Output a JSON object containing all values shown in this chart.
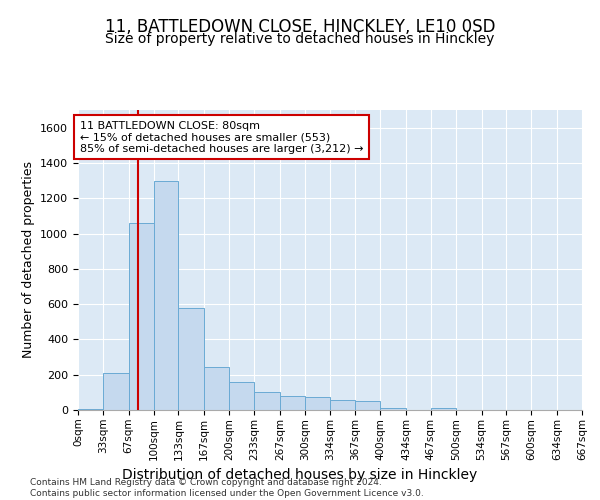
{
  "title": "11, BATTLEDOWN CLOSE, HINCKLEY, LE10 0SD",
  "subtitle": "Size of property relative to detached houses in Hinckley",
  "xlabel": "Distribution of detached houses by size in Hinckley",
  "ylabel": "Number of detached properties",
  "footer_line1": "Contains HM Land Registry data © Crown copyright and database right 2024.",
  "footer_line2": "Contains public sector information licensed under the Open Government Licence v3.0.",
  "bin_edges": [
    0,
    33,
    67,
    100,
    133,
    167,
    200,
    233,
    267,
    300,
    334,
    367,
    400,
    434,
    467,
    500,
    534,
    567,
    600,
    634,
    667
  ],
  "bar_heights": [
    5,
    210,
    1060,
    1300,
    580,
    245,
    160,
    100,
    80,
    75,
    55,
    50,
    10,
    0,
    10,
    0,
    0,
    0,
    0,
    0
  ],
  "bar_color": "#c5d9ee",
  "bar_edge_color": "#6aaad4",
  "property_size": 80,
  "red_line_color": "#cc0000",
  "annotation_line1": "11 BATTLEDOWN CLOSE: 80sqm",
  "annotation_line2": "← 15% of detached houses are smaller (553)",
  "annotation_line3": "85% of semi-detached houses are larger (3,212) →",
  "annotation_box_color": "#cc0000",
  "ylim": [
    0,
    1700
  ],
  "yticks": [
    0,
    200,
    400,
    600,
    800,
    1000,
    1200,
    1400,
    1600
  ],
  "plot_bg_color": "#dce9f5",
  "grid_color": "#ffffff",
  "title_fontsize": 12,
  "subtitle_fontsize": 10,
  "ylabel_fontsize": 9,
  "xlabel_fontsize": 10,
  "tick_fontsize": 8,
  "footer_fontsize": 6.5
}
